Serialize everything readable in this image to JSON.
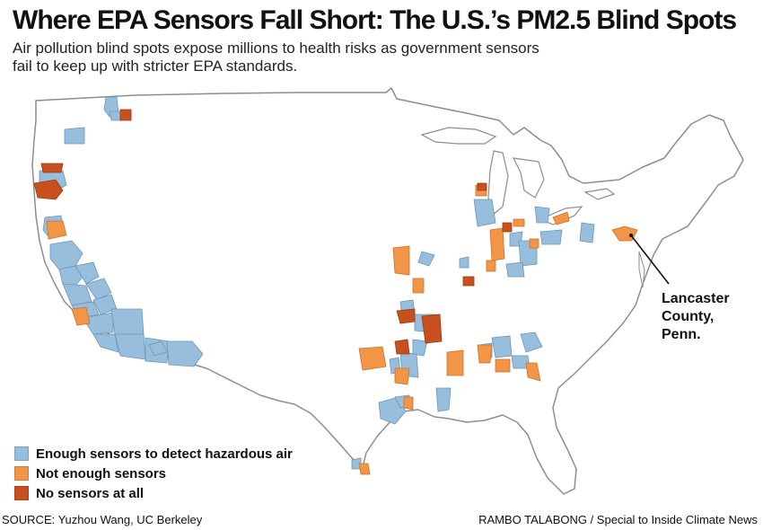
{
  "header": {
    "title": "Where EPA Sensors Fall Short: The U.S.’s PM2.5 Blind Spots",
    "subtitle": "Air pollution blind spots expose millions to health risks as government sensors fail to keep up with stricter EPA standards."
  },
  "colors": {
    "land": "#ffffff",
    "border": "#8d8d8d",
    "background": "#ffffff",
    "enough": "#97bfdd",
    "not_enough": "#f39547",
    "none": "#c8501f"
  },
  "legend": {
    "items": [
      {
        "label": "Enough sensors to detect hazardous air",
        "category": "enough"
      },
      {
        "label": "Not enough sensors",
        "category": "not_enough"
      },
      {
        "label": "No sensors at all",
        "category": "none"
      }
    ]
  },
  "callout": {
    "line1": "Lancaster",
    "line2": "County,",
    "line3": "Penn."
  },
  "footer": {
    "source": "SOURCE: Yuzhou Wang, UC Berkeley",
    "credit": "RAMBO TALABONG / Special to Inside Climate News"
  }
}
